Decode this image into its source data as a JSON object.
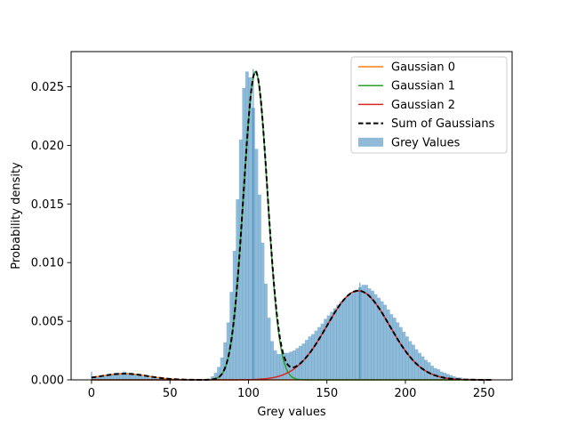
{
  "chart_data": {
    "type": "line",
    "title": "",
    "xlabel": "Grey values",
    "ylabel": "Probability density",
    "xlim": [
      -13,
      268
    ],
    "ylim": [
      0,
      0.028
    ],
    "grid": false,
    "legend_position": "top-right",
    "x_ticks": [
      0,
      50,
      100,
      150,
      200,
      250
    ],
    "x_tick_labels": [
      "0",
      "50",
      "100",
      "150",
      "200",
      "250"
    ],
    "y_ticks": [
      0.0,
      0.005,
      0.01,
      0.015,
      0.02,
      0.025
    ],
    "y_tick_labels": [
      "0.000",
      "0.005",
      "0.010",
      "0.015",
      "0.020",
      "0.025"
    ],
    "histogram": {
      "name": "Grey Values",
      "color": "#1f77b4",
      "alpha": 0.5,
      "bin_edges_start": 0,
      "bin_width": 2,
      "densities": [
        0.0003,
        0.0003,
        0.0003,
        0.0004,
        0.0004,
        0.0005,
        0.0005,
        0.0006,
        0.0006,
        0.0006,
        0.0007,
        0.0006,
        0.0006,
        0.0005,
        0.0005,
        0.0004,
        0.0003,
        0.0003,
        0.0002,
        0.0002,
        0.0002,
        0.0001,
        0.0001,
        0.0001,
        0.0001,
        0.0001,
        0.0001,
        0.0,
        0.0,
        0.0,
        0.0,
        0.0,
        0.0,
        0.0,
        0.0,
        0.0,
        0.0,
        0.0001,
        0.0003,
        0.0006,
        0.0011,
        0.0019,
        0.0032,
        0.0049,
        0.0075,
        0.011,
        0.0154,
        0.0205,
        0.0249,
        0.0263,
        0.0258,
        0.0232,
        0.0197,
        0.0158,
        0.0117,
        0.0082,
        0.0053,
        0.0033,
        0.0025,
        0.0022,
        0.0022,
        0.0023,
        0.0023,
        0.0024,
        0.0025,
        0.0027,
        0.0029,
        0.0031,
        0.0034,
        0.0037,
        0.0039,
        0.0042,
        0.0045,
        0.0048,
        0.0052,
        0.0055,
        0.0058,
        0.0061,
        0.0064,
        0.0067,
        0.0069,
        0.0071,
        0.0073,
        0.0075,
        0.0077,
        0.0079,
        0.0081,
        0.0081,
        0.0078,
        0.0076,
        0.0073,
        0.007,
        0.0067,
        0.0064,
        0.006,
        0.0056,
        0.0053,
        0.0049,
        0.0045,
        0.0041,
        0.0037,
        0.0033,
        0.003,
        0.0026,
        0.0023,
        0.002,
        0.0017,
        0.0015,
        0.0012,
        0.001,
        0.0009,
        0.0007,
        0.0006,
        0.0005,
        0.0004,
        0.0003,
        0.0002,
        0.0002,
        0.0001,
        0.0001,
        0.0001,
        0.0001,
        0.0,
        0.0,
        0.0,
        0.0,
        0.0,
        0.0
      ],
      "spikes": [
        {
          "x": 0,
          "value": 0.0007
        },
        {
          "x": 103,
          "value": 0.0265
        },
        {
          "x": 171,
          "value": 0.0083
        }
      ]
    },
    "series": [
      {
        "name": "Gaussian 0",
        "color": "#ff7f0e",
        "style": "solid",
        "mu": 21,
        "sigma": 15,
        "peak": 0.00052
      },
      {
        "name": "Gaussian 1",
        "color": "#2ca02c",
        "style": "solid",
        "mu": 104.5,
        "sigma": 7.6,
        "peak": 0.0263
      },
      {
        "name": "Gaussian 2",
        "color": "#d62728",
        "style": "solid",
        "mu": 170,
        "sigma": 20,
        "peak": 0.0076
      },
      {
        "name": "Sum of Gaussians",
        "color": "#000000",
        "style": "dashed",
        "components": [
          0,
          1,
          2
        ]
      }
    ],
    "legend": [
      "Gaussian 0",
      "Gaussian 1",
      "Gaussian 2",
      "Sum of Gaussians",
      "Grey Values"
    ],
    "x_range_curves": [
      0,
      255
    ]
  }
}
